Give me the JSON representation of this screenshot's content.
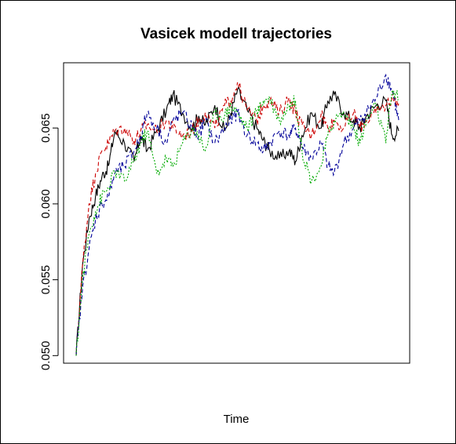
{
  "chart_data": {
    "type": "line",
    "title": "Vasicek modell trajectories",
    "xlabel": "Time",
    "ylabel": "",
    "ylim": [
      0.0495,
      0.0693
    ],
    "x_axis_ticks": false,
    "y_ticks": [
      "0.050",
      "0.055",
      "0.060",
      "0.065"
    ],
    "y_tick_values": [
      0.05,
      0.055,
      0.06,
      0.065
    ],
    "grid": false,
    "legend": "none",
    "series": [
      {
        "color": "#000000",
        "linestyle": "solid",
        "x": [
          0,
          2,
          4,
          6,
          8,
          10,
          12,
          15,
          18,
          20,
          22,
          25,
          28,
          30,
          33,
          36,
          38,
          40,
          43,
          46,
          48,
          50,
          53,
          56,
          58,
          60,
          63,
          66,
          68,
          70,
          73,
          76,
          78,
          80,
          83,
          86,
          88,
          90,
          93,
          96,
          98,
          100
        ],
        "values": [
          0.05,
          0.056,
          0.059,
          0.0605,
          0.0618,
          0.0625,
          0.0648,
          0.064,
          0.0628,
          0.0645,
          0.0635,
          0.0648,
          0.0662,
          0.0672,
          0.066,
          0.065,
          0.0658,
          0.0652,
          0.0665,
          0.0648,
          0.066,
          0.0675,
          0.0662,
          0.065,
          0.0642,
          0.0635,
          0.063,
          0.0635,
          0.0628,
          0.0645,
          0.066,
          0.065,
          0.0668,
          0.0672,
          0.066,
          0.0655,
          0.065,
          0.0658,
          0.0665,
          0.0668,
          0.0645,
          0.0648
        ]
      },
      {
        "color": "#cc0000",
        "linestyle": "dashed",
        "x": [
          0,
          2,
          4,
          6,
          8,
          10,
          12,
          15,
          18,
          20,
          22,
          25,
          28,
          30,
          33,
          36,
          38,
          40,
          43,
          46,
          48,
          50,
          53,
          56,
          58,
          60,
          63,
          66,
          68,
          70,
          73,
          76,
          78,
          80,
          83,
          86,
          88,
          90,
          93,
          96,
          98,
          100
        ],
        "values": [
          0.05,
          0.056,
          0.06,
          0.062,
          0.0635,
          0.064,
          0.0648,
          0.065,
          0.0642,
          0.0648,
          0.0652,
          0.0648,
          0.0655,
          0.065,
          0.0645,
          0.0648,
          0.0655,
          0.066,
          0.065,
          0.0665,
          0.0668,
          0.068,
          0.0662,
          0.0655,
          0.0665,
          0.0668,
          0.066,
          0.067,
          0.066,
          0.0652,
          0.0645,
          0.066,
          0.065,
          0.0655,
          0.065,
          0.066,
          0.065,
          0.0655,
          0.066,
          0.0665,
          0.067,
          0.0666
        ]
      },
      {
        "color": "#000099",
        "linestyle": "dashed",
        "x": [
          0,
          2,
          4,
          6,
          8,
          10,
          12,
          15,
          18,
          20,
          22,
          25,
          28,
          30,
          33,
          36,
          38,
          40,
          43,
          46,
          48,
          50,
          53,
          56,
          58,
          60,
          63,
          66,
          68,
          70,
          73,
          76,
          78,
          80,
          83,
          86,
          88,
          90,
          93,
          96,
          98,
          100
        ],
        "values": [
          0.05,
          0.0545,
          0.057,
          0.059,
          0.06,
          0.0605,
          0.062,
          0.0625,
          0.0635,
          0.0645,
          0.066,
          0.065,
          0.064,
          0.0655,
          0.066,
          0.065,
          0.0645,
          0.0655,
          0.064,
          0.065,
          0.0655,
          0.066,
          0.0645,
          0.064,
          0.0635,
          0.064,
          0.0648,
          0.0645,
          0.065,
          0.0638,
          0.063,
          0.064,
          0.0625,
          0.062,
          0.064,
          0.065,
          0.0655,
          0.066,
          0.067,
          0.0685,
          0.0675,
          0.0655
        ]
      },
      {
        "color": "#00aa00",
        "linestyle": "dotted",
        "x": [
          0,
          2,
          4,
          6,
          8,
          10,
          12,
          15,
          18,
          20,
          22,
          25,
          28,
          30,
          33,
          36,
          38,
          40,
          43,
          46,
          48,
          50,
          53,
          56,
          58,
          60,
          63,
          66,
          68,
          70,
          73,
          76,
          78,
          80,
          83,
          86,
          88,
          90,
          93,
          96,
          98,
          100
        ],
        "values": [
          0.05,
          0.055,
          0.058,
          0.0595,
          0.0605,
          0.061,
          0.0622,
          0.0615,
          0.0628,
          0.064,
          0.0648,
          0.062,
          0.063,
          0.0625,
          0.064,
          0.065,
          0.0645,
          0.0635,
          0.066,
          0.0658,
          0.0665,
          0.066,
          0.065,
          0.066,
          0.0668,
          0.067,
          0.0655,
          0.0665,
          0.0668,
          0.0635,
          0.0615,
          0.0625,
          0.0645,
          0.0655,
          0.066,
          0.065,
          0.064,
          0.0655,
          0.0665,
          0.064,
          0.0675,
          0.067
        ]
      }
    ]
  }
}
